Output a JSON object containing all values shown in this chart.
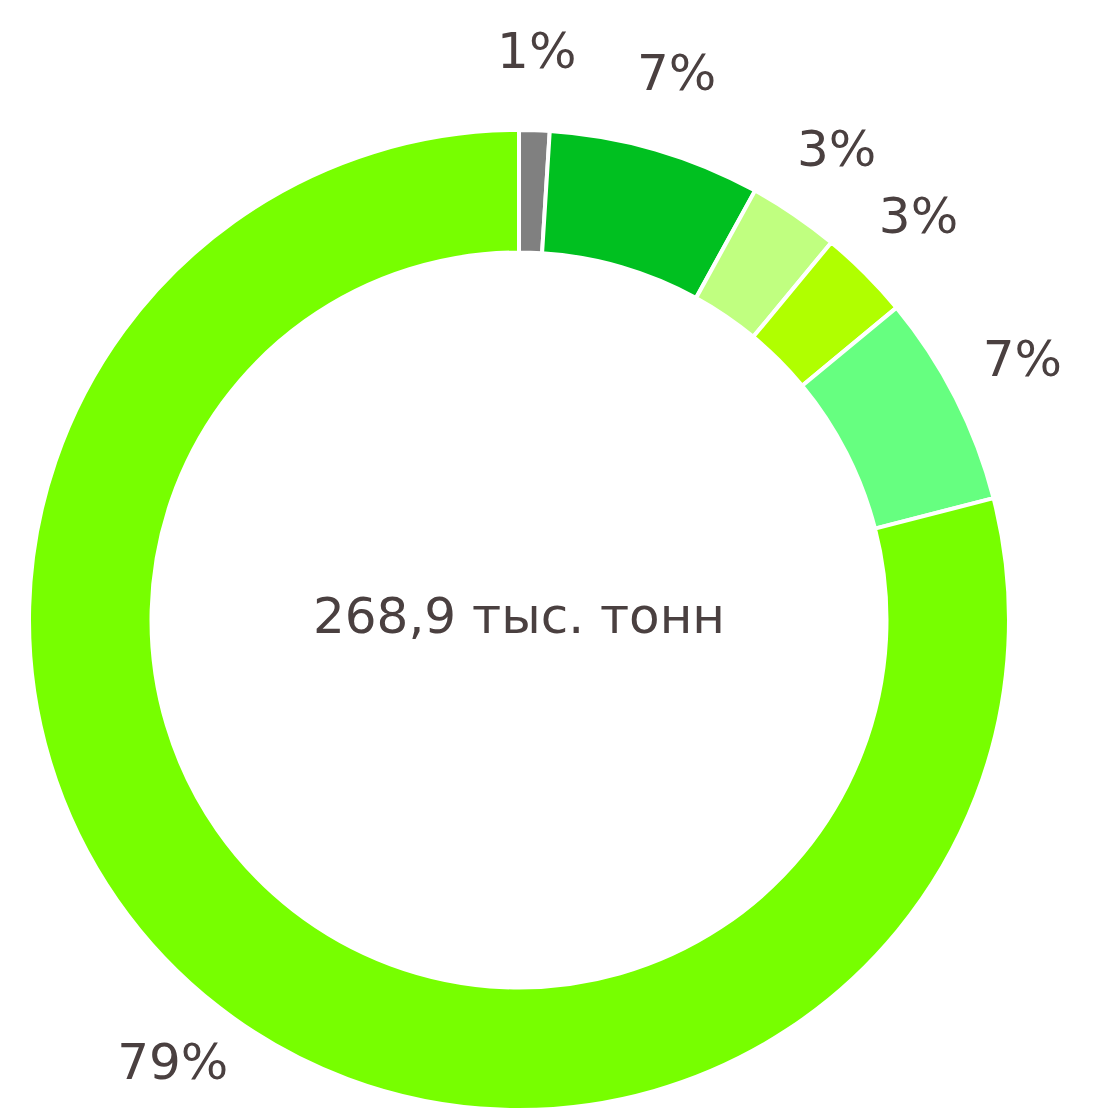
{
  "chart_data": {
    "type": "donut",
    "categories": [
      null,
      null,
      null,
      null,
      null,
      null
    ],
    "values": [
      1,
      7,
      3,
      3,
      7,
      79
    ],
    "colors": [
      "#808080",
      "#00c020",
      "#c0ff80",
      "#b0ff00",
      "#66ff80",
      "#77ff00"
    ],
    "value_labels": [
      "1%",
      "7%",
      "3%",
      "3%",
      "7%",
      "79%"
    ],
    "legend": false,
    "annotations": [
      "268,9 тыс. тонн"
    ]
  }
}
